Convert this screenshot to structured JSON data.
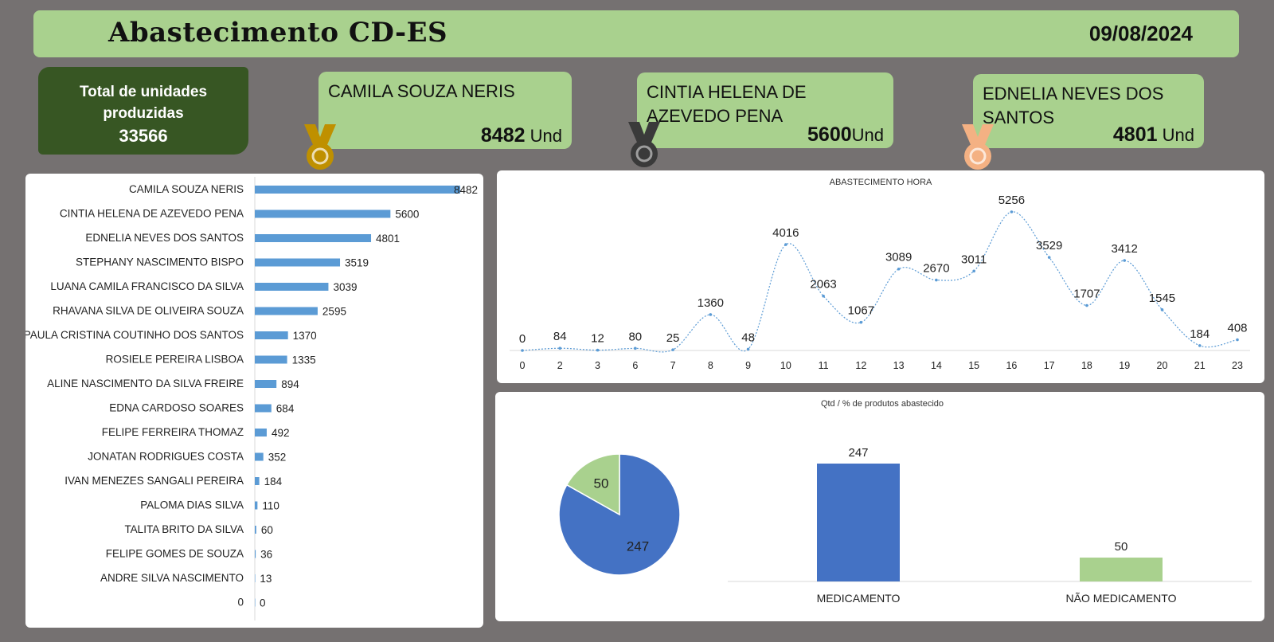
{
  "header": {
    "title": "Abastecimento CD-ES",
    "date": "09/08/2024"
  },
  "total": {
    "label": "Total de unidades produzidas",
    "value": "33566"
  },
  "podium": [
    {
      "rank": "1",
      "medal_color": "#bf9000",
      "name": "CAMILA SOUZA NERIS",
      "value": "8482",
      "unit": "Und"
    },
    {
      "rank": "2",
      "medal_color": "#3a3a3a",
      "name": "CINTIA HELENA DE AZEVEDO PENA",
      "value": "5600",
      "unit": "Und"
    },
    {
      "rank": "3",
      "medal_color": "#f4b183",
      "name": "EDNELIA NEVES DOS SANTOS",
      "value": "4801",
      "unit": "Und"
    }
  ],
  "chart_data": [
    {
      "type": "bar",
      "orientation": "horizontal",
      "title": "",
      "categories": [
        "CAMILA SOUZA NERIS",
        "CINTIA HELENA DE AZEVEDO PENA",
        "EDNELIA NEVES DOS SANTOS",
        "STEPHANY NASCIMENTO BISPO",
        "LUANA CAMILA FRANCISCO DA SILVA",
        "RHAVANA SILVA DE OLIVEIRA SOUZA",
        "PAULA CRISTINA COUTINHO DOS SANTOS",
        "ROSIELE PEREIRA LISBOA",
        "ALINE NASCIMENTO DA SILVA FREIRE",
        "EDNA CARDOSO SOARES",
        "FELIPE FERREIRA THOMAZ",
        "JONATAN RODRIGUES COSTA",
        "IVAN MENEZES SANGALI PEREIRA",
        "PALOMA DIAS SILVA",
        "TALITA BRITO DA SILVA",
        "FELIPE GOMES DE SOUZA",
        "ANDRE SILVA NASCIMENTO",
        "0"
      ],
      "values": [
        8482,
        5600,
        4801,
        3519,
        3039,
        2595,
        1370,
        1335,
        894,
        684,
        492,
        352,
        184,
        110,
        60,
        36,
        13,
        0
      ],
      "color": "#5b9bd5",
      "xlim": [
        0,
        8482
      ]
    },
    {
      "type": "line",
      "title": "ABASTECIMENTO HORA",
      "x": [
        "0",
        "2",
        "3",
        "6",
        "7",
        "8",
        "9",
        "10",
        "11",
        "12",
        "13",
        "14",
        "15",
        "16",
        "17",
        "18",
        "19",
        "20",
        "21",
        "23"
      ],
      "values": [
        0,
        84,
        12,
        80,
        25,
        1360,
        48,
        4016,
        2063,
        1067,
        3089,
        2670,
        3011,
        5256,
        3529,
        1707,
        3412,
        1545,
        184,
        408
      ],
      "color": "#5b9bd5",
      "smooth": true,
      "grid": false
    },
    {
      "type": "pie",
      "title": "Qtd / % de produtos abastecido",
      "categories": [
        "MEDICAMENTO",
        "NÃO MEDICAMENTO"
      ],
      "values": [
        247,
        50
      ],
      "colors": [
        "#4472c4",
        "#a9d18e"
      ]
    },
    {
      "type": "bar",
      "title": "Qtd / % de produtos abastecido",
      "categories": [
        "MEDICAMENTO",
        "NÃO MEDICAMENTO"
      ],
      "values": [
        247,
        50
      ],
      "colors": [
        "#4472c4",
        "#a9d18e"
      ]
    }
  ]
}
